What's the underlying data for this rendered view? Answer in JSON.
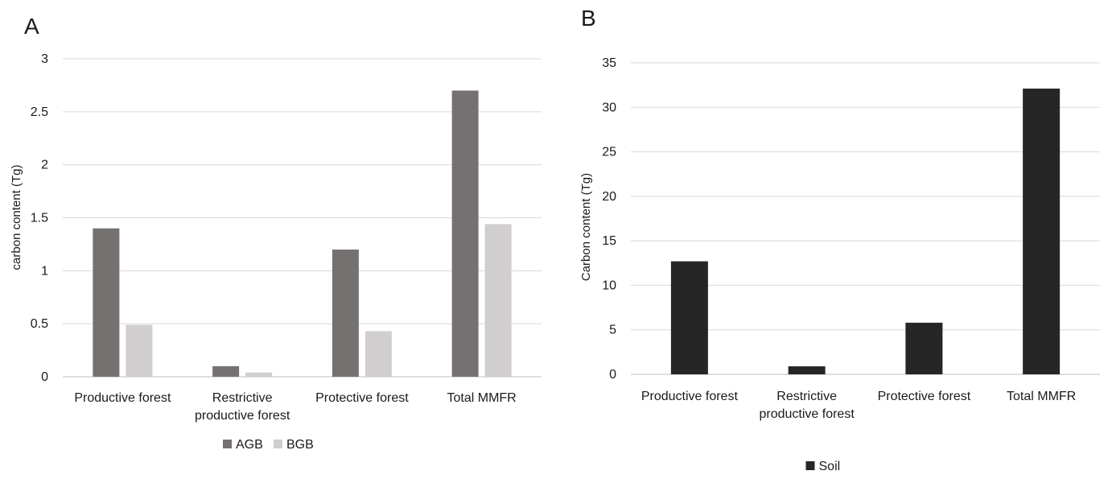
{
  "chart_data": [
    {
      "panel": "A",
      "type": "bar",
      "categories": [
        [
          "Productive forest"
        ],
        [
          "Restrictive",
          "productive forest"
        ],
        [
          "Protective forest"
        ],
        [
          "Total MMFR"
        ]
      ],
      "series": [
        {
          "name": "AGB",
          "color": "#767171",
          "values": [
            1.4,
            0.1,
            1.2,
            2.7
          ]
        },
        {
          "name": "BGB",
          "color": "#d0cece",
          "values": [
            0.49,
            0.04,
            0.43,
            1.44
          ]
        }
      ],
      "ylabel": "carbon content (Tg)",
      "ylim": [
        0,
        3
      ],
      "yticks": [
        0,
        0.5,
        1,
        1.5,
        2,
        2.5,
        3
      ],
      "ytick_labels": [
        "0",
        "0.5",
        "1",
        "1.5",
        "2",
        "2.5",
        "3"
      ],
      "grid": true,
      "legend": "bottom-center"
    },
    {
      "panel": "B",
      "type": "bar",
      "categories": [
        [
          "Productive forest"
        ],
        [
          "Restrictive",
          "productive forest"
        ],
        [
          "Protective forest"
        ],
        [
          "Total MMFR"
        ]
      ],
      "series": [
        {
          "name": "Soil",
          "color": "#262626",
          "values": [
            12.7,
            0.9,
            5.8,
            32.1
          ]
        }
      ],
      "ylabel": "Carbon content (Tg)",
      "ylim": [
        0,
        35
      ],
      "yticks": [
        0,
        5,
        10,
        15,
        20,
        25,
        30,
        35
      ],
      "ytick_labels": [
        "0",
        "5",
        "10",
        "15",
        "20",
        "25",
        "30",
        "35"
      ],
      "grid": true,
      "legend": "bottom-center"
    }
  ]
}
